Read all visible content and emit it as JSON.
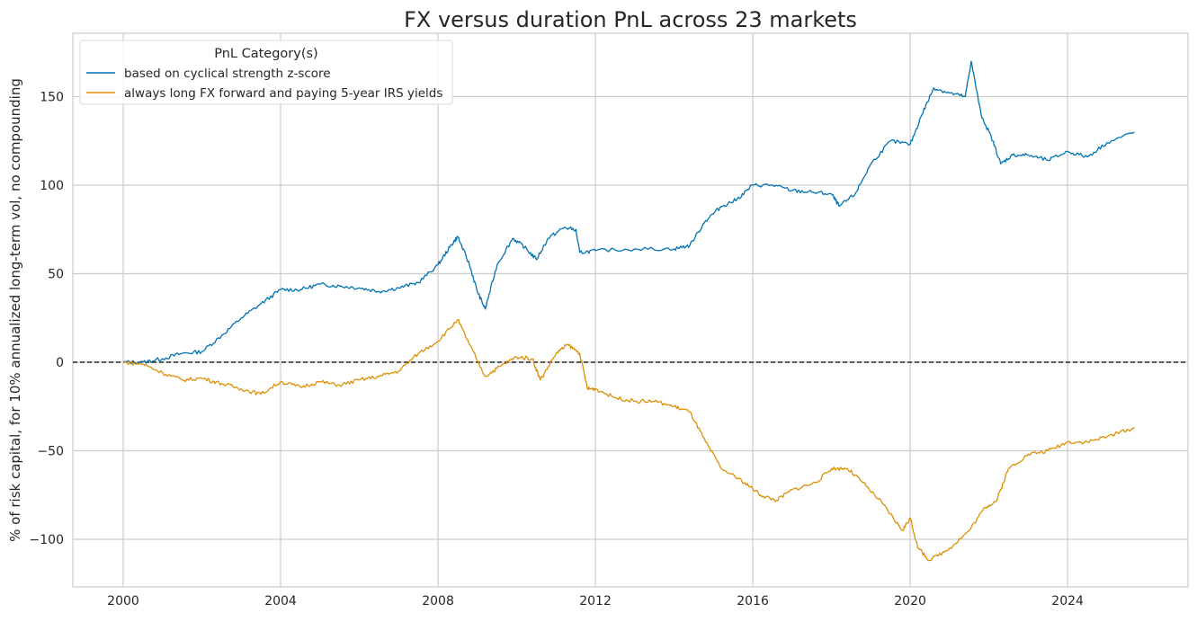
{
  "chart_data": {
    "type": "line",
    "title": "FX versus duration PnL across 23 markets",
    "xlabel": "",
    "ylabel": "% of risk capital, for 10% annualized long-term vol, no compounding",
    "xlim": [
      1998.72,
      2027.06
    ],
    "ylim": [
      -126.9,
      185.8
    ],
    "xticks": [
      2000,
      2004,
      2008,
      2012,
      2016,
      2020,
      2024
    ],
    "xtick_labels": [
      "2000",
      "2004",
      "2008",
      "2012",
      "2016",
      "2020",
      "2024"
    ],
    "yticks": [
      -100,
      -50,
      0,
      50,
      100,
      150
    ],
    "ytick_labels": [
      "−100",
      "−50",
      "0",
      "50",
      "100",
      "150"
    ],
    "grid": true,
    "zero_line": {
      "y": 0,
      "style": "dashed",
      "color": "#000000"
    },
    "legend": {
      "title": "PnL Category(s)",
      "placement": "top-left"
    },
    "series": [
      {
        "name": "based on cyclical strength z-score",
        "color": "#0173b2",
        "x": [
          2000,
          2000.5,
          2001,
          2001.5,
          2002,
          2002.5,
          2003,
          2003.5,
          2004,
          2004.5,
          2005,
          2005.5,
          2006,
          2006.5,
          2007,
          2007.5,
          2008,
          2008.3,
          2008.5,
          2008.8,
          2009,
          2009.2,
          2009.5,
          2009.9,
          2010.2,
          2010.5,
          2010.8,
          2011.2,
          2011.5,
          2011.6,
          2012,
          2013,
          2014,
          2014.4,
          2014.8,
          2015.2,
          2015.6,
          2016,
          2016.5,
          2017,
          2017.5,
          2018,
          2018.2,
          2018.6,
          2019,
          2019.5,
          2020,
          2020.3,
          2020.6,
          2021,
          2021.4,
          2021.55,
          2021.8,
          2022.1,
          2022.3,
          2022.6,
          2023,
          2023.5,
          2024,
          2024.5,
          2025,
          2025.7
        ],
        "y": [
          0,
          0,
          2,
          5,
          6,
          15,
          25,
          33,
          41,
          41,
          44,
          43,
          42,
          40,
          42,
          45,
          55,
          65,
          71,
          55,
          40,
          30,
          55,
          70,
          65,
          58,
          70,
          76,
          75,
          62,
          63,
          64,
          64,
          66,
          80,
          88,
          92,
          100,
          100,
          97,
          96,
          95,
          88,
          95,
          112,
          125,
          123,
          140,
          155,
          152,
          150,
          170,
          140,
          125,
          112,
          117,
          117,
          114,
          119,
          116,
          124,
          130
        ]
      },
      {
        "name": "always long FX forward and paying 5-year IRS yields",
        "color": "#de8f05",
        "x": [
          2000,
          2000.5,
          2001,
          2001.5,
          2002,
          2002.5,
          2003,
          2003.5,
          2004,
          2004.5,
          2005,
          2005.5,
          2006,
          2006.5,
          2007,
          2007.5,
          2008,
          2008.5,
          2008.8,
          2009.2,
          2009.6,
          2010,
          2010.4,
          2010.6,
          2011,
          2011.3,
          2011.6,
          2011.8,
          2012,
          2012.5,
          2013,
          2013.5,
          2014,
          2014.4,
          2014.8,
          2015.2,
          2015.8,
          2016.2,
          2016.6,
          2017,
          2017.6,
          2018,
          2018.4,
          2018.8,
          2019.3,
          2019.8,
          2020,
          2020.2,
          2020.5,
          2021,
          2021.5,
          2021.9,
          2022.2,
          2022.5,
          2023,
          2023.5,
          2024,
          2024.5,
          2025,
          2025.7
        ],
        "y": [
          0,
          -1,
          -6,
          -10,
          -9,
          -12,
          -15,
          -18,
          -11,
          -14,
          -11,
          -13,
          -10,
          -8,
          -5,
          5,
          12,
          24,
          10,
          -8,
          -2,
          3,
          2,
          -10,
          5,
          10,
          5,
          -15,
          -15,
          -20,
          -22,
          -22,
          -25,
          -28,
          -45,
          -60,
          -68,
          -75,
          -78,
          -72,
          -68,
          -60,
          -60,
          -68,
          -80,
          -95,
          -88,
          -105,
          -112,
          -105,
          -95,
          -82,
          -78,
          -60,
          -52,
          -50,
          -45,
          -45,
          -42,
          -37
        ]
      }
    ]
  }
}
